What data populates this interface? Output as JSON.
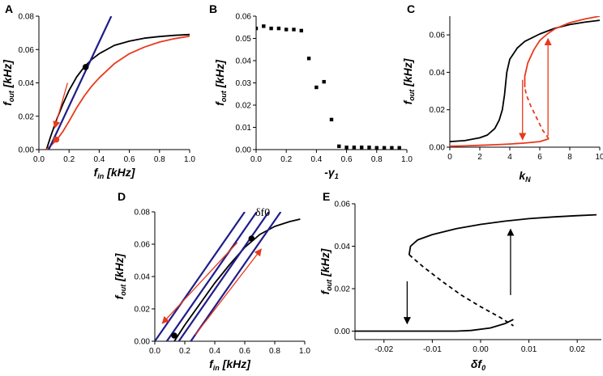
{
  "colors": {
    "black": "#000000",
    "red": "#e8391c",
    "navy": "#1f1d8a"
  },
  "chart_data": [
    {
      "id": "A",
      "type": "line",
      "panel_label": "A",
      "xlabel": "f",
      "xlabel_sub": "in",
      "xlabel_rest": " [kHz]",
      "ylabel": "f",
      "ylabel_sub": "out",
      "ylabel_rest": " [kHz]",
      "xlim": [
        0,
        1.0
      ],
      "ylim": [
        0,
        0.08
      ],
      "xticks": [
        0.0,
        0.2,
        0.4,
        0.6,
        0.8,
        1.0
      ],
      "xtick_labels": [
        "0.0",
        "0.2",
        "0.4",
        "0.6",
        "0.8",
        "1.0"
      ],
      "yticks": [
        0.0,
        0.02,
        0.04,
        0.06,
        0.08
      ],
      "ytick_labels": [
        "0.00",
        "0.02",
        "0.04",
        "0.06",
        "0.08"
      ],
      "series": [
        {
          "name": "black-curve",
          "color": "black",
          "x": [
            0.05,
            0.08,
            0.12,
            0.16,
            0.2,
            0.25,
            0.3,
            0.35,
            0.4,
            0.5,
            0.6,
            0.7,
            0.8,
            0.9,
            1.0
          ],
          "y": [
            0.0,
            0.0085,
            0.0185,
            0.0275,
            0.0355,
            0.0435,
            0.0495,
            0.054,
            0.0575,
            0.0625,
            0.065,
            0.0668,
            0.0678,
            0.0685,
            0.069
          ]
        },
        {
          "name": "red-curve",
          "color": "red",
          "x": [
            0.05,
            0.08,
            0.12,
            0.16,
            0.2,
            0.25,
            0.3,
            0.35,
            0.4,
            0.5,
            0.6,
            0.7,
            0.8,
            0.9,
            1.0
          ],
          "y": [
            0.0,
            0.0025,
            0.006,
            0.011,
            0.017,
            0.025,
            0.032,
            0.038,
            0.043,
            0.0515,
            0.0575,
            0.0615,
            0.0645,
            0.0665,
            0.068
          ]
        },
        {
          "name": "blue-line",
          "color": "navy",
          "x": [
            0.065,
            0.48
          ],
          "y": [
            0.0,
            0.08
          ]
        }
      ],
      "points": [
        {
          "name": "black-intersection",
          "color": "black",
          "x": 0.31,
          "y": 0.0495
        },
        {
          "name": "red-intersection",
          "color": "red",
          "x": 0.115,
          "y": 0.006
        }
      ],
      "arrows": [
        {
          "name": "red-arrow",
          "color": "red",
          "from": [
            0.19,
            0.04
          ],
          "to": [
            0.105,
            0.013
          ]
        }
      ],
      "texts": []
    },
    {
      "id": "B",
      "type": "scatter",
      "panel_label": "B",
      "xlabel": "-γ",
      "xlabel_sub": "1",
      "xlabel_rest": "",
      "ylabel": "f",
      "ylabel_sub": "out",
      "ylabel_rest": " [kHz]",
      "xlim": [
        0,
        1.0
      ],
      "ylim": [
        0,
        0.06
      ],
      "xticks": [
        0.0,
        0.2,
        0.4,
        0.6,
        0.8,
        1.0
      ],
      "xtick_labels": [
        "0.0",
        "0.2",
        "0.4",
        "0.6",
        "0.8",
        "1.0"
      ],
      "yticks": [
        0.0,
        0.01,
        0.02,
        0.03,
        0.04,
        0.05,
        0.06
      ],
      "ytick_labels": [
        "0.00",
        "0.01",
        "0.02",
        "0.03",
        "0.04",
        "0.05",
        "0.06"
      ],
      "series": [
        {
          "name": "data-points",
          "color": "black",
          "marker": "square",
          "x": [
            0.0,
            0.05,
            0.1,
            0.15,
            0.2,
            0.25,
            0.3,
            0.35,
            0.4,
            0.45,
            0.5,
            0.55,
            0.6,
            0.65,
            0.7,
            0.75,
            0.8,
            0.85,
            0.9,
            0.95
          ],
          "y": [
            0.0545,
            0.0555,
            0.0545,
            0.0545,
            0.054,
            0.054,
            0.0535,
            0.041,
            0.028,
            0.0305,
            0.0135,
            0.0015,
            0.001,
            0.001,
            0.001,
            0.001,
            0.0008,
            0.0008,
            0.0008,
            0.0008
          ]
        }
      ],
      "points": [],
      "arrows": [],
      "texts": []
    },
    {
      "id": "C",
      "type": "line",
      "panel_label": "C",
      "xlabel": "k",
      "xlabel_sub": "N",
      "xlabel_rest": "",
      "ylabel": "f",
      "ylabel_sub": "out",
      "ylabel_rest": " [kHz]",
      "xlim": [
        0,
        10
      ],
      "ylim": [
        0,
        0.07
      ],
      "xticks": [
        0,
        2,
        4,
        6,
        8,
        10
      ],
      "xtick_labels": [
        "0",
        "2",
        "4",
        "6",
        "8",
        "10"
      ],
      "yticks": [
        0.0,
        0.02,
        0.04,
        0.06
      ],
      "ytick_labels": [
        "0.00",
        "0.02",
        "0.04",
        "0.06"
      ],
      "series": [
        {
          "name": "black-curve",
          "color": "black",
          "x": [
            0,
            1,
            2,
            2.5,
            3,
            3.3,
            3.5,
            3.65,
            3.8,
            4.0,
            4.5,
            5,
            6,
            7,
            8,
            9,
            10
          ],
          "y": [
            0.003,
            0.0035,
            0.005,
            0.0065,
            0.01,
            0.0145,
            0.02,
            0.028,
            0.04,
            0.047,
            0.053,
            0.0565,
            0.0605,
            0.0635,
            0.0655,
            0.0668,
            0.0678
          ]
        },
        {
          "name": "red-lower-branch",
          "color": "red",
          "x": [
            0,
            1,
            2,
            3,
            4,
            5,
            6,
            6.6
          ],
          "y": [
            0.0005,
            0.0007,
            0.001,
            0.0013,
            0.0017,
            0.0022,
            0.003,
            0.0045
          ]
        },
        {
          "name": "red-unstable-branch",
          "color": "red",
          "dashed": true,
          "x": [
            6.6,
            6.2,
            5.8,
            5.4,
            5.1,
            5.0
          ],
          "y": [
            0.0045,
            0.009,
            0.0155,
            0.022,
            0.028,
            0.032
          ]
        },
        {
          "name": "red-upper-branch",
          "color": "red",
          "x": [
            5.0,
            5.0,
            5.2,
            5.6,
            6.0,
            6.5,
            7,
            8,
            9,
            10
          ],
          "y": [
            0.032,
            0.038,
            0.045,
            0.052,
            0.057,
            0.0605,
            0.0632,
            0.0665,
            0.0685,
            0.07
          ]
        }
      ],
      "points": [],
      "arrows": [
        {
          "name": "red-down-arrow",
          "color": "red",
          "from": [
            4.85,
            0.036
          ],
          "to": [
            4.85,
            0.004
          ]
        },
        {
          "name": "red-up-arrow",
          "color": "red",
          "from": [
            6.55,
            0.006
          ],
          "to": [
            6.55,
            0.058
          ]
        }
      ],
      "texts": []
    },
    {
      "id": "D",
      "type": "line",
      "panel_label": "D",
      "xlabel": "f",
      "xlabel_sub": "in",
      "xlabel_rest": " [kHz]",
      "ylabel": "f",
      "ylabel_sub": "out",
      "ylabel_rest": " [kHz]",
      "xlim": [
        0,
        1.0
      ],
      "ylim": [
        0,
        0.08
      ],
      "xticks": [
        0.0,
        0.2,
        0.4,
        0.6,
        0.8,
        1.0
      ],
      "xtick_labels": [
        "0.0",
        "0.2",
        "0.4",
        "0.6",
        "0.8",
        "1.0"
      ],
      "yticks": [
        0.0,
        0.02,
        0.04,
        0.06,
        0.08
      ],
      "ytick_labels": [
        "0.00",
        "0.02",
        "0.04",
        "0.06",
        "0.08"
      ],
      "series": [
        {
          "name": "black-curve",
          "color": "black",
          "x": [
            0.13,
            0.2,
            0.3,
            0.4,
            0.5,
            0.6,
            0.7,
            0.8,
            0.9,
            0.97
          ],
          "y": [
            0.0,
            0.01,
            0.023,
            0.036,
            0.0475,
            0.058,
            0.066,
            0.071,
            0.074,
            0.0755
          ]
        },
        {
          "name": "blue-line-1",
          "color": "navy",
          "x": [
            0.0,
            0.6
          ],
          "y": [
            0.0,
            0.08
          ]
        },
        {
          "name": "blue-line-2",
          "color": "navy",
          "x": [
            0.08,
            0.68
          ],
          "y": [
            0.0,
            0.08
          ]
        },
        {
          "name": "blue-line-3",
          "color": "navy",
          "x": [
            0.16,
            0.76
          ],
          "y": [
            0.0,
            0.08
          ]
        },
        {
          "name": "blue-line-4",
          "color": "navy",
          "x": [
            0.24,
            0.84
          ],
          "y": [
            0.0,
            0.08
          ]
        }
      ],
      "points": [
        {
          "name": "upper-intersection",
          "color": "black",
          "x": 0.645,
          "y": 0.0635
        },
        {
          "name": "lower-intersection",
          "color": "black",
          "x": 0.13,
          "y": 0.0035
        }
      ],
      "arrows": [
        {
          "name": "red-down-arrow",
          "color": "red",
          "from": [
            0.55,
            0.061
          ],
          "to": [
            0.05,
            0.011
          ]
        },
        {
          "name": "red-up-arrow",
          "color": "red",
          "from": [
            0.27,
            0.004
          ],
          "to": [
            0.71,
            0.057
          ]
        }
      ],
      "texts": [
        {
          "name": "delta-f0-label",
          "text": "δf0",
          "x": 0.67,
          "y": 0.0775
        }
      ]
    },
    {
      "id": "E",
      "type": "line",
      "panel_label": "E",
      "xlabel": "δf",
      "xlabel_sub": "0",
      "xlabel_rest": "",
      "ylabel": "f",
      "ylabel_sub": "out",
      "ylabel_rest": " [kHz]",
      "xlim": [
        -0.026,
        0.025
      ],
      "ylim": [
        -0.004,
        0.06
      ],
      "xticks": [
        -0.02,
        -0.01,
        0.0,
        0.01,
        0.02
      ],
      "xtick_labels": [
        "-0.02",
        "-0.01",
        "0.00",
        "0.01",
        "0.02"
      ],
      "yticks": [
        0.0,
        0.02,
        0.04,
        0.06
      ],
      "ytick_labels": [
        "0.00",
        "0.02",
        "0.04",
        "0.06"
      ],
      "series": [
        {
          "name": "upper-branch",
          "color": "black",
          "x": [
            -0.0148,
            -0.0145,
            -0.013,
            -0.01,
            -0.005,
            0.0,
            0.005,
            0.01,
            0.015,
            0.02,
            0.024
          ],
          "y": [
            0.036,
            0.04,
            0.043,
            0.0455,
            0.0483,
            0.0503,
            0.0518,
            0.053,
            0.0538,
            0.0544,
            0.0548
          ]
        },
        {
          "name": "unstable-branch",
          "color": "black",
          "dashed": true,
          "x": [
            -0.0148,
            -0.012,
            -0.008,
            -0.004,
            0.0,
            0.004,
            0.0068
          ],
          "y": [
            0.036,
            0.0305,
            0.0235,
            0.017,
            0.0115,
            0.0065,
            0.0025
          ]
        },
        {
          "name": "lower-branch",
          "color": "black",
          "x": [
            -0.026,
            -0.02,
            -0.01,
            -0.005,
            -0.002,
            0.002,
            0.005,
            0.0068
          ],
          "y": [
            0.0,
            0.0,
            0.0,
            0.0,
            0.0003,
            0.0015,
            0.0035,
            0.0055
          ]
        }
      ],
      "points": [],
      "arrows": [
        {
          "name": "down-arrow",
          "color": "black",
          "from": [
            -0.0152,
            0.0235
          ],
          "to": [
            -0.0152,
            0.0035
          ]
        },
        {
          "name": "up-arrow",
          "color": "black",
          "from": [
            0.0062,
            0.017
          ],
          "to": [
            0.0062,
            0.048
          ]
        }
      ],
      "texts": []
    }
  ]
}
